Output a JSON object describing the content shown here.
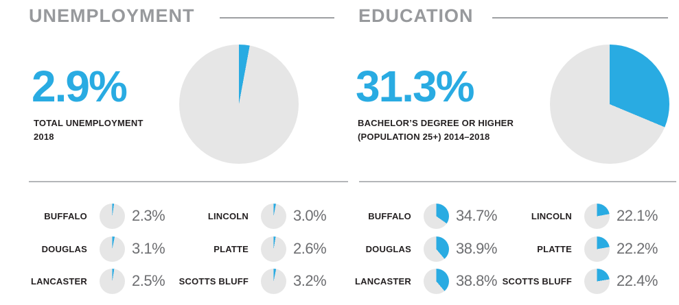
{
  "colors": {
    "accent": "#29abe2",
    "pie_bg": "#e6e6e6",
    "title_gray": "#97999c",
    "divider": "#b3b5b8",
    "label_black": "#231f20",
    "value_gray": "#6d6e71"
  },
  "sections": [
    {
      "id": "unemployment",
      "title": "UNEMPLOYMENT",
      "stat_value": "2.9%",
      "caption_line1": "TOTAL UNEMPLOYMENT",
      "caption_line2": "2018",
      "pie_percent": 2.9,
      "counties": [
        {
          "name": "BUFFALO",
          "value": "2.3%",
          "percent": 2.3
        },
        {
          "name": "DOUGLAS",
          "value": "3.1%",
          "percent": 3.1
        },
        {
          "name": "LANCASTER",
          "value": "2.5%",
          "percent": 2.5
        },
        {
          "name": "LINCOLN",
          "value": "3.0%",
          "percent": 3.0
        },
        {
          "name": "PLATTE",
          "value": "2.6%",
          "percent": 2.6
        },
        {
          "name": "SCOTTS BLUFF",
          "value": "3.2%",
          "percent": 3.2
        }
      ]
    },
    {
      "id": "education",
      "title": "EDUCATION",
      "stat_value": "31.3%",
      "caption_line1": "BACHELOR’S DEGREE OR HIGHER",
      "caption_line2": "(POPULATION 25+) 2014–2018",
      "pie_percent": 31.3,
      "counties": [
        {
          "name": "BUFFALO",
          "value": "34.7%",
          "percent": 34.7
        },
        {
          "name": "DOUGLAS",
          "value": "38.9%",
          "percent": 38.9
        },
        {
          "name": "LANCASTER",
          "value": "38.8%",
          "percent": 38.8
        },
        {
          "name": "LINCOLN",
          "value": "22.1%",
          "percent": 22.1
        },
        {
          "name": "PLATTE",
          "value": "22.2%",
          "percent": 22.2
        },
        {
          "name": "SCOTTS BLUFF",
          "value": "22.4%",
          "percent": 22.4
        }
      ]
    }
  ],
  "chart_data": [
    {
      "type": "pie",
      "title": "UNEMPLOYMENT",
      "subtitle": "TOTAL UNEMPLOYMENT 2018",
      "labels": [
        "Total unemployment",
        "Remainder"
      ],
      "values": [
        2.9,
        97.1
      ],
      "slice_colors": [
        "#29abe2",
        "#e6e6e6"
      ],
      "start_angle_deg": 0,
      "direction": "clockwise",
      "county_pies": [
        {
          "label": "BUFFALO",
          "percent": 2.3
        },
        {
          "label": "DOUGLAS",
          "percent": 3.1
        },
        {
          "label": "LANCASTER",
          "percent": 2.5
        },
        {
          "label": "LINCOLN",
          "percent": 3.0
        },
        {
          "label": "PLATTE",
          "percent": 2.6
        },
        {
          "label": "SCOTTS BLUFF",
          "percent": 3.2
        }
      ]
    },
    {
      "type": "pie",
      "title": "EDUCATION",
      "subtitle": "BACHELOR’S DEGREE OR HIGHER (POPULATION 25+) 2014–2018",
      "labels": [
        "Bachelor's degree or higher",
        "Remainder"
      ],
      "values": [
        31.3,
        68.7
      ],
      "slice_colors": [
        "#29abe2",
        "#e6e6e6"
      ],
      "start_angle_deg": 0,
      "direction": "clockwise",
      "county_pies": [
        {
          "label": "BUFFALO",
          "percent": 34.7
        },
        {
          "label": "DOUGLAS",
          "percent": 38.9
        },
        {
          "label": "LANCASTER",
          "percent": 38.8
        },
        {
          "label": "LINCOLN",
          "percent": 22.1
        },
        {
          "label": "PLATTE",
          "percent": 22.2
        },
        {
          "label": "SCOTTS BLUFF",
          "percent": 22.4
        }
      ]
    }
  ]
}
